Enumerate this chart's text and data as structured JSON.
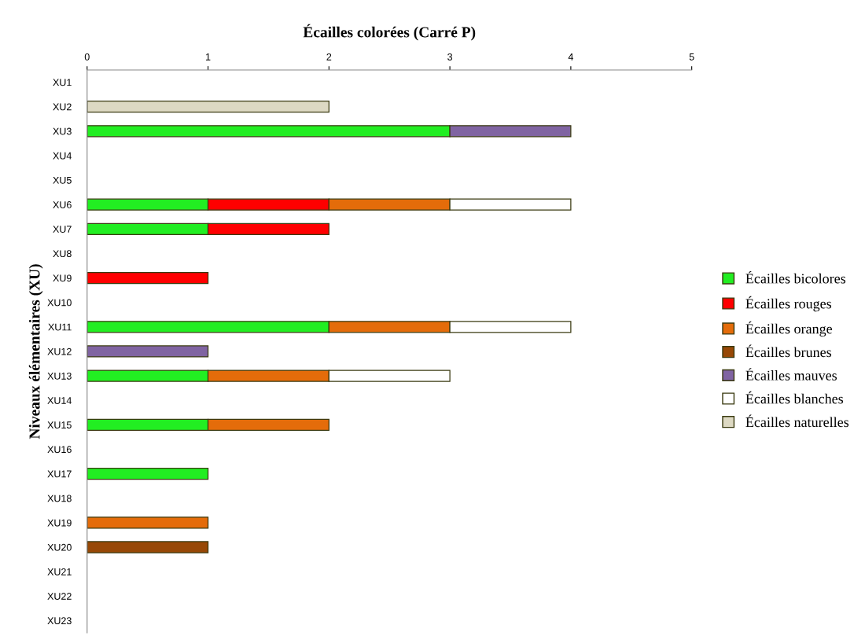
{
  "chart_data": {
    "type": "bar",
    "orientation": "horizontal",
    "stacked": true,
    "title": "Écailles colorées (Carré P)",
    "ylabel": "Niveaux élémentaires (XU)",
    "categories": [
      "XU1",
      "XU2",
      "XU3",
      "XU4",
      "XU5",
      "XU6",
      "XU7",
      "XU8",
      "XU9",
      "XU10",
      "XU11",
      "XU12",
      "XU13",
      "XU14",
      "XU15",
      "XU16",
      "XU17",
      "XU18",
      "XU19",
      "XU20",
      "XU21",
      "XU22",
      "XU23"
    ],
    "series": [
      {
        "name": "Écailles bicolores",
        "color": "#22ee22",
        "values": [
          null,
          null,
          3,
          null,
          null,
          1,
          1,
          null,
          null,
          null,
          2,
          null,
          1,
          null,
          1,
          null,
          1,
          null,
          null,
          null,
          null,
          null,
          null
        ]
      },
      {
        "name": "Écailles rouges",
        "color": "#ff0000",
        "values": [
          null,
          null,
          null,
          null,
          null,
          1,
          1,
          null,
          1,
          null,
          null,
          null,
          null,
          null,
          null,
          null,
          null,
          null,
          null,
          null,
          null,
          null,
          null
        ]
      },
      {
        "name": "Écailles orange",
        "color": "#e46c0a",
        "values": [
          null,
          null,
          null,
          null,
          null,
          1,
          null,
          null,
          null,
          null,
          1,
          null,
          1,
          null,
          1,
          null,
          null,
          null,
          1,
          null,
          null,
          null,
          null
        ]
      },
      {
        "name": "Écailles brunes",
        "color": "#974806",
        "values": [
          null,
          null,
          null,
          null,
          null,
          null,
          null,
          null,
          null,
          null,
          null,
          null,
          null,
          null,
          null,
          null,
          null,
          null,
          null,
          1,
          null,
          null,
          null
        ]
      },
      {
        "name": "Écailles mauves",
        "color": "#8064a2",
        "values": [
          null,
          null,
          1,
          null,
          null,
          null,
          null,
          null,
          null,
          null,
          null,
          1,
          null,
          null,
          null,
          null,
          null,
          null,
          null,
          null,
          null,
          null,
          null
        ]
      },
      {
        "name": "Écailles blanches",
        "color": "#ffffff",
        "values": [
          null,
          null,
          null,
          null,
          null,
          1,
          null,
          null,
          null,
          null,
          1,
          null,
          1,
          null,
          null,
          null,
          null,
          null,
          null,
          null,
          null,
          null,
          null
        ]
      },
      {
        "name": "Écailles naturelles",
        "color": "#ddd9c3",
        "values": [
          null,
          2,
          null,
          null,
          null,
          null,
          null,
          null,
          null,
          null,
          null,
          null,
          null,
          null,
          null,
          null,
          null,
          null,
          null,
          null,
          null,
          null,
          null
        ]
      }
    ],
    "xlim": [
      0,
      5
    ],
    "xticks": [
      0,
      1,
      2,
      3,
      4,
      5
    ],
    "grid": false,
    "legend": "right"
  }
}
